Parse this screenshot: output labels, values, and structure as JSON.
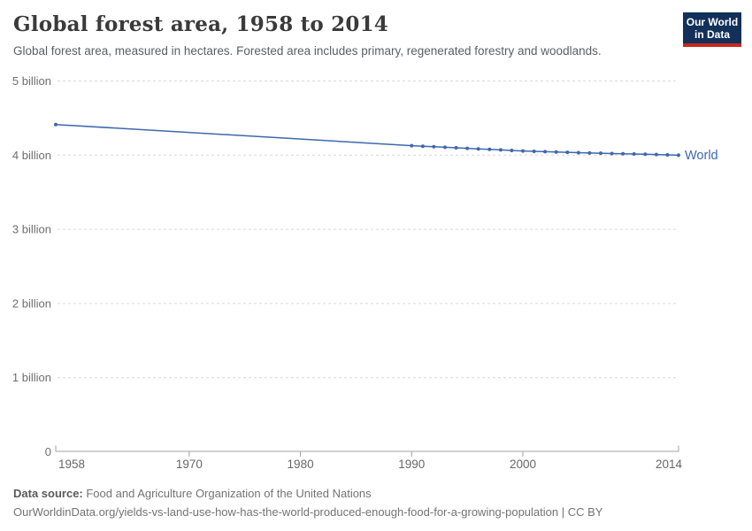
{
  "header": {
    "title": "Global forest area, 1958 to 2014",
    "subtitle": "Global forest area, measured in hectares. Forested area includes primary, regenerated forestry and woodlands.",
    "logo": {
      "line1": "Our World",
      "line2": "in Data"
    }
  },
  "chart_data": {
    "type": "line",
    "title": "Global forest area, 1958 to 2014",
    "xlabel": "",
    "ylabel": "hectares",
    "x_range": [
      1958,
      2014
    ],
    "y_range_billions": [
      0,
      5
    ],
    "grid": "dashed horizontal gridlines",
    "legend_position": "end-of-line",
    "y_ticks": [
      {
        "value": 0,
        "label": "0"
      },
      {
        "value": 1,
        "label": "1 billion"
      },
      {
        "value": 2,
        "label": "2 billion"
      },
      {
        "value": 3,
        "label": "3 billion"
      },
      {
        "value": 4,
        "label": "4 billion"
      },
      {
        "value": 5,
        "label": "5 billion"
      }
    ],
    "x_ticks": [
      {
        "value": 1958,
        "label": "1958"
      },
      {
        "value": 1970,
        "label": "1970"
      },
      {
        "value": 1980,
        "label": "1980"
      },
      {
        "value": 1990,
        "label": "1990"
      },
      {
        "value": 2000,
        "label": "2000"
      },
      {
        "value": 2014,
        "label": "2014"
      }
    ],
    "series": [
      {
        "name": "World",
        "color": "#3e68ac",
        "unit": "billion hectares",
        "points": [
          [
            1958,
            4.413
          ],
          [
            1990,
            4.128
          ],
          [
            1991,
            4.121
          ],
          [
            1992,
            4.114
          ],
          [
            1993,
            4.106
          ],
          [
            1994,
            4.099
          ],
          [
            1995,
            4.092
          ],
          [
            1996,
            4.085
          ],
          [
            1997,
            4.077
          ],
          [
            1998,
            4.07
          ],
          [
            1999,
            4.063
          ],
          [
            2000,
            4.056
          ],
          [
            2001,
            4.051
          ],
          [
            2002,
            4.047
          ],
          [
            2003,
            4.042
          ],
          [
            2004,
            4.038
          ],
          [
            2005,
            4.033
          ],
          [
            2006,
            4.029
          ],
          [
            2007,
            4.026
          ],
          [
            2008,
            4.022
          ],
          [
            2009,
            4.019
          ],
          [
            2010,
            4.016
          ],
          [
            2011,
            4.012
          ],
          [
            2012,
            4.008
          ],
          [
            2013,
            4.004
          ],
          [
            2014,
            3.999
          ]
        ]
      }
    ]
  },
  "footer": {
    "source_label": "Data source:",
    "source_text": " Food and Agriculture Organization of the United Nations",
    "citation": "OurWorldinData.org/yields-vs-land-use-how-has-the-world-produced-enough-food-for-a-growing-population | CC BY"
  },
  "colors": {
    "line": "#3e68ac",
    "logo_bg": "#12305a",
    "logo_bar": "#c7281d",
    "gridline": "#d9d9d9",
    "axis": "#a3a3a3",
    "y_tick_label": "#6e6e6e",
    "x_tick_label": "#676767"
  }
}
